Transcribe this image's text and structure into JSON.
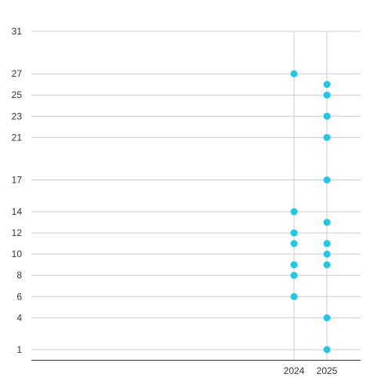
{
  "chart_data": {
    "type": "scatter",
    "title": "",
    "xlabel": "",
    "ylabel": "",
    "x_ticks": [
      "2024",
      "2025"
    ],
    "y_ticks": [
      1,
      4,
      6,
      8,
      10,
      12,
      14,
      17,
      21,
      23,
      25,
      27,
      31
    ],
    "ylim": [
      0,
      31
    ],
    "grid": true,
    "legend": "none",
    "colors": {
      "point": "#1ec8e6",
      "grid": "#cccccc",
      "axis": "#333333"
    },
    "series": [
      {
        "points": [
          {
            "x": "2024",
            "y": 27
          },
          {
            "x": "2024",
            "y": 14
          },
          {
            "x": "2024",
            "y": 12
          },
          {
            "x": "2024",
            "y": 11
          },
          {
            "x": "2024",
            "y": 9
          },
          {
            "x": "2024",
            "y": 8
          },
          {
            "x": "2024",
            "y": 6
          },
          {
            "x": "2025",
            "y": 26
          },
          {
            "x": "2025",
            "y": 25
          },
          {
            "x": "2025",
            "y": 23
          },
          {
            "x": "2025",
            "y": 21
          },
          {
            "x": "2025",
            "y": 17
          },
          {
            "x": "2025",
            "y": 13
          },
          {
            "x": "2025",
            "y": 11
          },
          {
            "x": "2025",
            "y": 10
          },
          {
            "x": "2025",
            "y": 9
          },
          {
            "x": "2025",
            "y": 4
          },
          {
            "x": "2025",
            "y": 1
          }
        ]
      }
    ]
  }
}
